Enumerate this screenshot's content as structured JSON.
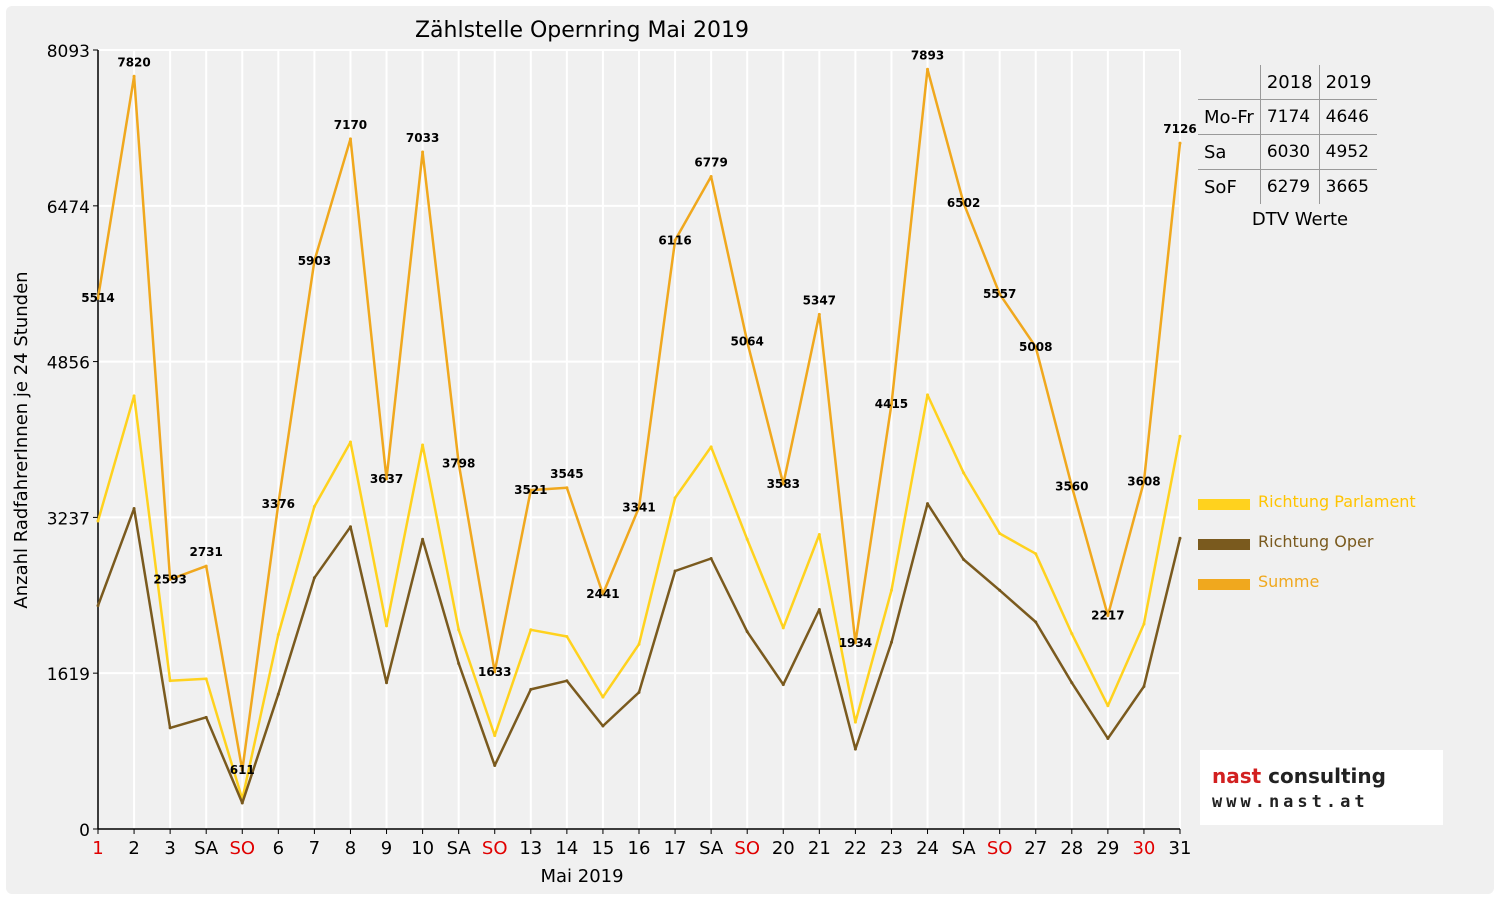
{
  "chart_data": {
    "type": "line",
    "title": "Zählstelle Opernring Mai 2019",
    "xlabel": "Mai 2019",
    "ylabel": "Anzahl RadfahrerInnen je 24 Stunden",
    "ylim": [
      0,
      8093
    ],
    "yticks": [
      "0",
      "1619",
      "3237",
      "4856",
      "6474",
      "8093"
    ],
    "grid": true,
    "legend_position": "right",
    "categories": [
      "1",
      "2",
      "3",
      "SA",
      "SO",
      "6",
      "7",
      "8",
      "9",
      "10",
      "SA",
      "SO",
      "13",
      "14",
      "15",
      "16",
      "17",
      "SA",
      "SO",
      "20",
      "21",
      "22",
      "23",
      "24",
      "SA",
      "SO",
      "27",
      "28",
      "29",
      "30",
      "31"
    ],
    "red_categories": [
      0,
      4,
      11,
      18,
      25,
      29
    ],
    "series": [
      {
        "name": "Richtung Parlament",
        "color": "#FFD21E",
        "values": [
          3200,
          4500,
          1540,
          1560,
          310,
          2020,
          3350,
          4020,
          2110,
          3990,
          2070,
          970,
          2070,
          2000,
          1370,
          1920,
          3440,
          3970,
          3010,
          2090,
          3060,
          1110,
          2480,
          4510,
          3700,
          3070,
          2860,
          2030,
          1280,
          2130,
          4080
        ]
      },
      {
        "name": "Richtung Oper",
        "color": "#7A5A1E",
        "values": [
          2320,
          3330,
          1050,
          1160,
          270,
          1400,
          2610,
          3140,
          1520,
          3010,
          1720,
          660,
          1450,
          1540,
          1070,
          1420,
          2680,
          2810,
          2050,
          1500,
          2280,
          830,
          1940,
          3380,
          2800,
          2480,
          2150,
          1520,
          940,
          1480,
          3020
        ]
      },
      {
        "name": "Summe",
        "color": "#F0A81E",
        "values": [
          5514,
          7820,
          2593,
          2731,
          611,
          3376,
          5903,
          7170,
          3637,
          7033,
          3798,
          1633,
          3521,
          3545,
          2441,
          3341,
          6116,
          6779,
          5064,
          3583,
          5347,
          1934,
          4415,
          7893,
          6502,
          5557,
          5008,
          3560,
          2217,
          3608,
          7126
        ]
      }
    ]
  },
  "dtv_table": {
    "headers": [
      "",
      "2018",
      "2019"
    ],
    "rows": [
      {
        "label": "Mo-Fr",
        "y2018": "7174",
        "y2019": "4646"
      },
      {
        "label": "Sa",
        "y2018": "6030",
        "y2019": "4952"
      },
      {
        "label": "SoF",
        "y2018": "6279",
        "y2019": "3665"
      }
    ],
    "caption": "DTV Werte"
  },
  "logo": {
    "name_part1": "nast",
    "name_part2": " consulting",
    "url": "www.nast.at"
  }
}
